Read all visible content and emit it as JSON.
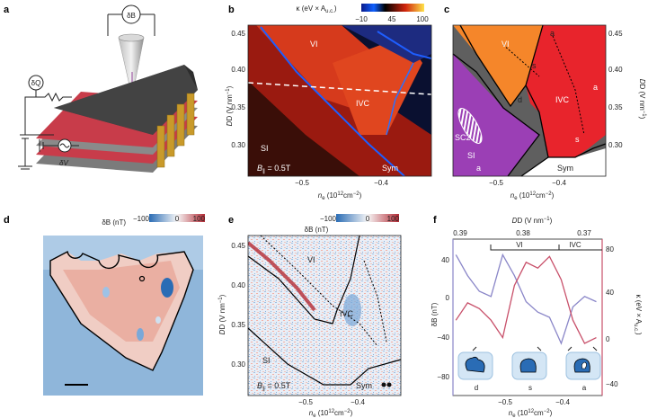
{
  "panels": {
    "a": "a",
    "b": "b",
    "c": "c",
    "d": "d",
    "e": "e",
    "f": "f"
  },
  "panel_a": {
    "meter_top": "δB",
    "meter_left": "δQ",
    "voltage": "δV"
  },
  "panel_b": {
    "colorbar_title": "κ (eV × A",
    "colorbar_title_sub": "u.c.",
    "colorbar_title_end": ")",
    "colorbar_ticks": [
      "−10",
      "45",
      "100"
    ],
    "regions": [
      "VI",
      "IVC",
      "SI",
      "Sym"
    ],
    "field_label": "B",
    "field_sub": "∥",
    "field_value": " = 0.5T",
    "y_ticks": [
      "0.45",
      "0.40",
      "0.35",
      "0.30"
    ],
    "x_ticks": [
      "−0.5",
      "−0.4"
    ],
    "ylabel": "D (V nm",
    "xlabel": "n",
    "xlabel_sub": "e",
    "xlabel_unit": " (10",
    "xlabel_exp": "12",
    "xlabel_end": "cm",
    "xlabel_exp2": "−2",
    "xlabel_close": ")"
  },
  "panel_c": {
    "regions": [
      "VI",
      "a",
      "s",
      "d",
      "IVC",
      "a",
      "s",
      "SC2",
      "SI",
      "a",
      "Sym"
    ],
    "y_ticks": [
      "0.45",
      "0.40",
      "0.35",
      "0.30"
    ],
    "x_ticks": [
      "−0.5",
      "−0.4"
    ],
    "ylabel": "D (V nm"
  },
  "panel_d": {
    "colorbar_title": "δB (nT)",
    "colorbar_ticks": [
      "−100",
      "0",
      "100"
    ]
  },
  "panel_e": {
    "colorbar_title": "δB (nT)",
    "colorbar_ticks": [
      "−100",
      "0",
      "100"
    ],
    "regions": [
      "VI",
      "IVC",
      "SI",
      "Sym"
    ],
    "y_ticks": [
      "0.45",
      "0.40",
      "0.35",
      "0.30"
    ],
    "x_ticks": [
      "−0.5",
      "−0.4"
    ],
    "ylabel": "D (V nm"
  },
  "panel_f": {
    "top_label": "D (V nm",
    "top_ticks": [
      "0.39",
      "0.38",
      "0.37"
    ],
    "regions": [
      "VI",
      "IVC"
    ],
    "left_ticks": [
      "40",
      "0",
      "−40",
      "−80"
    ],
    "left_label": "δB (nT)",
    "right_ticks": [
      "80",
      "40",
      "0",
      "−40"
    ],
    "right_label": "κ (eV × A",
    "x_ticks": [
      "−0.5",
      "−0.4"
    ],
    "insets": [
      "d",
      "s",
      "a"
    ]
  },
  "colors": {
    "blue_trace": "#8a86c8",
    "red_trace": "#c8506a",
    "orange": "#f5862a",
    "red": "#e8242c",
    "grey": "#5f5f5f",
    "purple": "#9b3fb5"
  },
  "chart_data": {
    "type": "line",
    "x": [
      -0.58,
      -0.56,
      -0.54,
      -0.52,
      -0.5,
      -0.48,
      -0.46,
      -0.44,
      -0.42,
      -0.4,
      -0.38,
      -0.36,
      -0.34
    ],
    "series": [
      {
        "values": [
          40,
          20,
          5,
          0,
          40,
          20,
          -5,
          -15,
          -20,
          -45,
          -10,
          0,
          -5
        ]
      },
      {
        "values": [
          20,
          35,
          30,
          20,
          5,
          50,
          70,
          65,
          75,
          55,
          20,
          0,
          5
        ]
      }
    ],
    "xlim": [
      -0.585,
      -0.33
    ],
    "ylim_left": [
      -95,
      55
    ],
    "ylim_right": [
      -45,
      90
    ]
  }
}
